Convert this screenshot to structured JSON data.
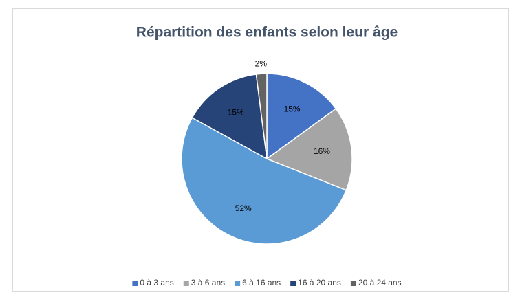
{
  "chart_data": {
    "type": "pie",
    "title": "Répartition des enfants selon leur âge",
    "categories": [
      "0 à 3 ans",
      "3 à 6 ans",
      "6 à 16 ans",
      "16 à 20 ans",
      "20 à 24 ans"
    ],
    "values": [
      15,
      16,
      52,
      15,
      2
    ],
    "value_labels": [
      "15%",
      "16%",
      "52%",
      "15%",
      "2%"
    ],
    "colors": [
      "#4472c4",
      "#a5a5a5",
      "#5b9bd5",
      "#264478",
      "#636363"
    ],
    "legend": "bottom"
  }
}
